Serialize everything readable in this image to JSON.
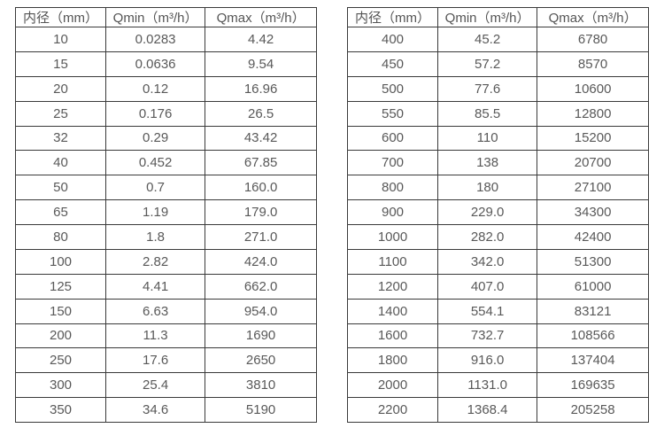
{
  "colors": {
    "border": "#3a3a3a",
    "text": "#595959",
    "background": "#ffffff"
  },
  "tables": [
    {
      "name": "flow-rate-table-small-diameters",
      "headers": [
        "内径（mm）",
        "Qmin（m³/h）",
        "Qmax（m³/h）"
      ],
      "rows": [
        [
          "10",
          "0.0283",
          "4.42"
        ],
        [
          "15",
          "0.0636",
          "9.54"
        ],
        [
          "20",
          "0.12",
          "16.96"
        ],
        [
          "25",
          "0.176",
          "26.5"
        ],
        [
          "32",
          "0.29",
          "43.42"
        ],
        [
          "40",
          "0.452",
          "67.85"
        ],
        [
          "50",
          "0.7",
          "160.0"
        ],
        [
          "65",
          "1.19",
          "179.0"
        ],
        [
          "80",
          "1.8",
          "271.0"
        ],
        [
          "100",
          "2.82",
          "424.0"
        ],
        [
          "125",
          "4.41",
          "662.0"
        ],
        [
          "150",
          "6.63",
          "954.0"
        ],
        [
          "200",
          "11.3",
          "1690"
        ],
        [
          "250",
          "17.6",
          "2650"
        ],
        [
          "300",
          "25.4",
          "3810"
        ],
        [
          "350",
          "34.6",
          "5190"
        ]
      ]
    },
    {
      "name": "flow-rate-table-large-diameters",
      "headers": [
        "内径（mm）",
        "Qmin（m³/h）",
        "Qmax（m³/h）"
      ],
      "rows": [
        [
          "400",
          "45.2",
          "6780"
        ],
        [
          "450",
          "57.2",
          "8570"
        ],
        [
          "500",
          "77.6",
          "10600"
        ],
        [
          "550",
          "85.5",
          "12800"
        ],
        [
          "600",
          "110",
          "15200"
        ],
        [
          "700",
          "138",
          "20700"
        ],
        [
          "800",
          "180",
          "27100"
        ],
        [
          "900",
          "229.0",
          "34300"
        ],
        [
          "1000",
          "282.0",
          "42400"
        ],
        [
          "1100",
          "342.0",
          "51300"
        ],
        [
          "1200",
          "407.0",
          "61000"
        ],
        [
          "1400",
          "554.1",
          "83121"
        ],
        [
          "1600",
          "732.7",
          "108566"
        ],
        [
          "1800",
          "916.0",
          "137404"
        ],
        [
          "2000",
          "1131.0",
          "169635"
        ],
        [
          "2200",
          "1368.4",
          "205258"
        ]
      ]
    }
  ]
}
